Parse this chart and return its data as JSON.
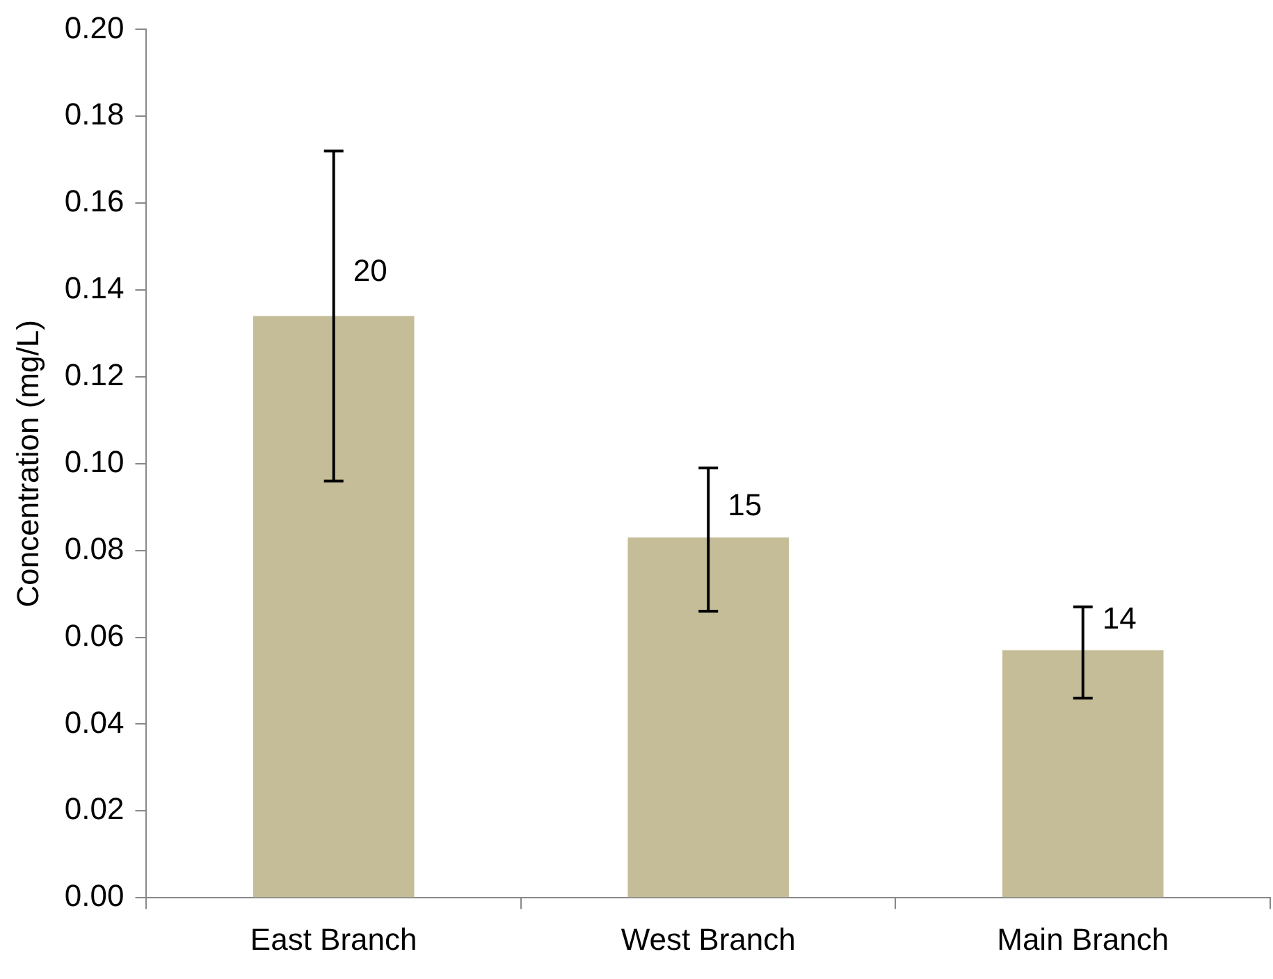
{
  "chart_data": {
    "type": "bar",
    "ylabel": "Concentration (mg/L)",
    "categories": [
      "East Branch",
      "West Branch",
      "Main Branch"
    ],
    "values": [
      0.134,
      0.083,
      0.057
    ],
    "color": "#c4bd97",
    "errors": [
      [
        0.096,
        0.172
      ],
      [
        0.066,
        0.099
      ],
      [
        0.046,
        0.067
      ]
    ],
    "ylim": [
      0,
      0.2
    ],
    "yticks": [
      {
        "value": 0,
        "label": "0.00"
      },
      {
        "value": 0.02,
        "label": "0.02"
      },
      {
        "value": 0.04,
        "label": "0.04"
      },
      {
        "value": 0.06,
        "label": "0.06"
      },
      {
        "value": 0.08,
        "label": "0.08"
      },
      {
        "value": 0.1,
        "label": "0.10"
      },
      {
        "value": 0.12,
        "label": "0.12"
      },
      {
        "value": 0.14,
        "label": "0.14"
      },
      {
        "value": 0.16,
        "label": "0.16"
      },
      {
        "value": 0.18,
        "label": "0.18"
      },
      {
        "value": 0.2,
        "label": "0.20"
      }
    ],
    "grid": false,
    "legend": false,
    "annotations": [
      {
        "text": "20",
        "x": "East Branch",
        "y": 0.144
      },
      {
        "text": "15",
        "x": "West Branch",
        "y": 0.09
      },
      {
        "text": "14",
        "x": "Main Branch",
        "y": 0.064
      }
    ]
  }
}
